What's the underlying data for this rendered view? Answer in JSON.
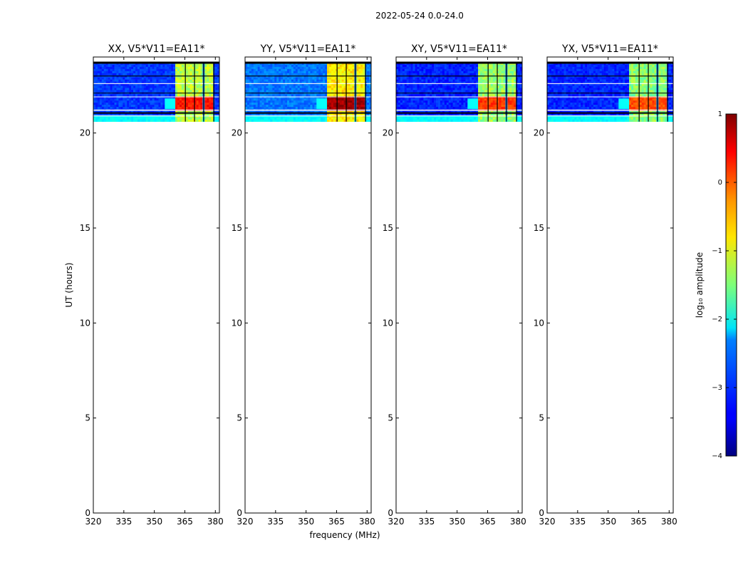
{
  "chart_data": {
    "type": "heatmap",
    "suptitle": "2022-05-24 0.0-24.0",
    "xlabel": "frequency (MHz)",
    "ylabel": "UT (hours)",
    "xlim": [
      320,
      382
    ],
    "ylim": [
      0,
      24
    ],
    "xticks": [
      320,
      335,
      350,
      365,
      380
    ],
    "yticks": [
      0,
      5,
      10,
      15,
      20
    ],
    "data_time_range": [
      20.6,
      23.7
    ],
    "rfi_band_mhz": [
      360.5,
      379
    ],
    "rfi_subbands": [
      {
        "start": 360.5,
        "end": 365.0
      },
      {
        "start": 365.5,
        "end": 369.5
      },
      {
        "start": 370.0,
        "end": 374.0
      },
      {
        "start": 374.5,
        "end": 379.0
      }
    ],
    "colorbar": {
      "label": "log10 amplitude",
      "label_display": "log₁₀ amplitude",
      "min": -4,
      "max": 1,
      "ticks": [
        -4,
        -3,
        -2,
        -1,
        0,
        1
      ],
      "tick_labels": [
        "−4",
        "−3",
        "−2",
        "−1",
        "0",
        "1"
      ],
      "colormap": "jet"
    },
    "panels": [
      {
        "title": "XX, V5*V11=EA11*",
        "polarization": "XX",
        "band_intensity": 0.74,
        "base_intensity": 0.18
      },
      {
        "title": "YY, V5*V11=EA11*",
        "polarization": "YY",
        "band_intensity": 0.85,
        "base_intensity": 0.24
      },
      {
        "title": "XY, V5*V11=EA11*",
        "polarization": "XY",
        "band_intensity": 0.7,
        "base_intensity": 0.16
      },
      {
        "title": "YX, V5*V11=EA11*",
        "polarization": "YX",
        "band_intensity": 0.68,
        "base_intensity": 0.16
      }
    ]
  }
}
